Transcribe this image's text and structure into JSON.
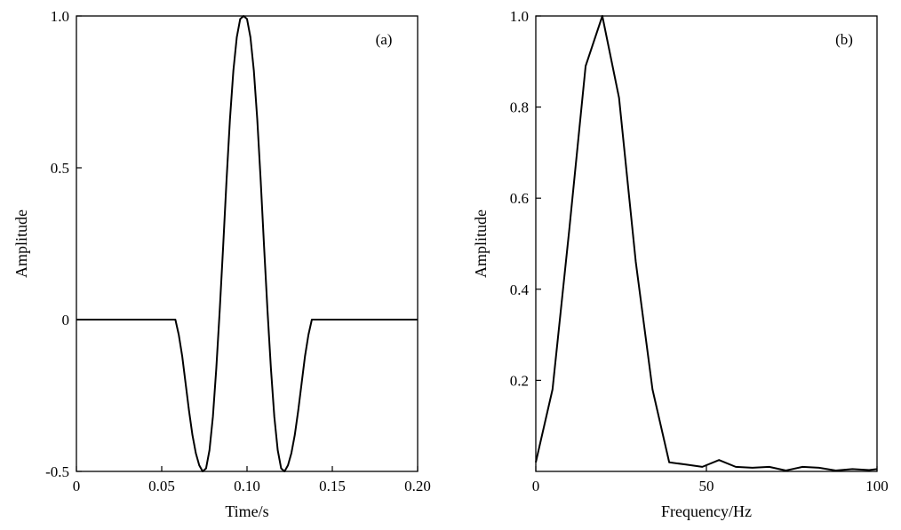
{
  "chart_data": [
    {
      "type": "line",
      "panel_label": "(a)",
      "xlabel": "Time/s",
      "ylabel": "Amplitude",
      "xlim": [
        0,
        0.2
      ],
      "ylim": [
        -0.5,
        1.0
      ],
      "x_ticks": [
        {
          "value": 0,
          "label": "0"
        },
        {
          "value": 0.05,
          "label": "0.05"
        },
        {
          "value": 0.1,
          "label": "0.10"
        },
        {
          "value": 0.15,
          "label": "0.15"
        },
        {
          "value": 0.2,
          "label": "0.20"
        }
      ],
      "y_ticks": [
        {
          "value": -0.5,
          "label": "-0.5"
        },
        {
          "value": 0,
          "label": "0"
        },
        {
          "value": 0.5,
          "label": "0.5"
        },
        {
          "value": 1.0,
          "label": "1.0"
        }
      ],
      "legend": "none",
      "grid": false,
      "series": [
        {
          "x": [
            0,
            0.058,
            0.06,
            0.062,
            0.064,
            0.066,
            0.068,
            0.07,
            0.072,
            0.074,
            0.076,
            0.078,
            0.08,
            0.082,
            0.084,
            0.086,
            0.088,
            0.09,
            0.092,
            0.094,
            0.096,
            0.098,
            0.1,
            0.102,
            0.104,
            0.106,
            0.108,
            0.11,
            0.112,
            0.114,
            0.116,
            0.118,
            0.12,
            0.122,
            0.124,
            0.126,
            0.128,
            0.13,
            0.132,
            0.134,
            0.136,
            0.138,
            0.14,
            0.142,
            0.2
          ],
          "y": [
            0,
            0,
            -0.05,
            -0.12,
            -0.21,
            -0.3,
            -0.38,
            -0.44,
            -0.48,
            -0.5,
            -0.49,
            -0.43,
            -0.32,
            -0.16,
            0.03,
            0.24,
            0.46,
            0.66,
            0.82,
            0.93,
            0.99,
            1.0,
            0.99,
            0.93,
            0.82,
            0.66,
            0.46,
            0.24,
            0.03,
            -0.16,
            -0.32,
            -0.43,
            -0.49,
            -0.5,
            -0.48,
            -0.44,
            -0.38,
            -0.3,
            -0.21,
            -0.12,
            -0.05,
            0,
            0,
            0,
            0
          ]
        }
      ]
    },
    {
      "type": "line",
      "panel_label": "(b)",
      "xlabel": "Frequency/Hz",
      "ylabel": "Amplitude",
      "xlim": [
        0,
        100
      ],
      "ylim": [
        0,
        1.0
      ],
      "x_ticks": [
        {
          "value": 0,
          "label": "0"
        },
        {
          "value": 50,
          "label": "50"
        },
        {
          "value": 100,
          "label": "100"
        }
      ],
      "y_ticks": [
        {
          "value": 0.2,
          "label": "0.2"
        },
        {
          "value": 0.4,
          "label": "0.4"
        },
        {
          "value": 0.6,
          "label": "0.6"
        },
        {
          "value": 0.8,
          "label": "0.8"
        },
        {
          "value": 1.0,
          "label": "1.0"
        }
      ],
      "legend": "none",
      "grid": false,
      "series": [
        {
          "x": [
            0,
            4.9,
            9.8,
            14.6,
            19.5,
            24.4,
            29.3,
            34.2,
            39.1,
            44.0,
            48.8,
            53.7,
            58.6,
            63.5,
            68.4,
            73.3,
            78.2,
            83.0,
            87.9,
            92.8,
            97.7,
            100
          ],
          "y": [
            0.02,
            0.18,
            0.53,
            0.89,
            1.0,
            0.82,
            0.46,
            0.18,
            0.02,
            0.015,
            0.01,
            0.025,
            0.01,
            0.008,
            0.01,
            0.002,
            0.01,
            0.008,
            0.002,
            0.005,
            0.003,
            0.005
          ]
        }
      ]
    }
  ]
}
